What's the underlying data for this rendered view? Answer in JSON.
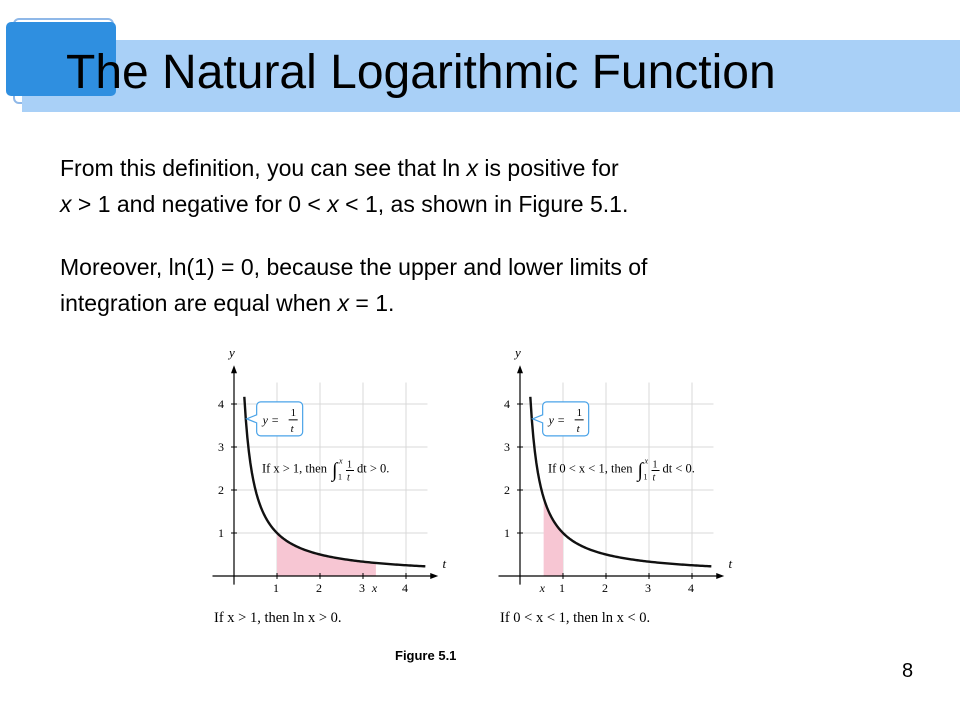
{
  "slide": {
    "title": "The Natural Logarithmic Function",
    "page_number": "8"
  },
  "paragraph1": {
    "line1_a": "From this definition, you can see that ln ",
    "line1_x": "x",
    "line1_b": " is positive for",
    "line2_x1": "x",
    "line2_a": " > 1 and negative for  0 < ",
    "line2_x2": "x",
    "line2_b": " < 1, as shown in Figure 5.1."
  },
  "paragraph2": {
    "line1": "Moreover, ln(1) = 0, because the upper and lower limits of",
    "line2_a": "integration are equal when ",
    "line2_x": "x",
    "line2_b": " = 1."
  },
  "figure": {
    "label": "Figure 5.1",
    "curve_label_y": "y =",
    "curve_label_num": "1",
    "curve_label_den": "t",
    "axis_y": "y",
    "axis_t": "t",
    "marker_x": "x",
    "left": {
      "condition_a": "If x > 1, then",
      "condition_b": "dt > 0.",
      "caption": "If x > 1, then ln x > 0."
    },
    "right": {
      "condition_a": "If 0 < x < 1, then",
      "condition_b": "dt < 0.",
      "caption": "If 0 < x < 1, then ln x < 0."
    },
    "integral": {
      "lower": "1",
      "upper": "x",
      "num": "1",
      "den": "t"
    },
    "shade_color": "#f7c6d3",
    "curve_color": "#111111"
  },
  "chart_data": [
    {
      "type": "area",
      "title": "If x > 1, then ln x > 0.",
      "xlabel": "t",
      "ylabel": "y",
      "function": "y = 1/t",
      "xlim": [
        0,
        4.5
      ],
      "ylim": [
        0,
        4.5
      ],
      "x_ticks": [
        1,
        2,
        3,
        4
      ],
      "y_ticks": [
        1,
        2,
        3,
        4
      ],
      "shaded_interval": [
        1,
        3.3
      ],
      "grid": true
    },
    {
      "type": "area",
      "title": "If 0 < x < 1, then ln x < 0.",
      "xlabel": "t",
      "ylabel": "y",
      "function": "y = 1/t",
      "xlim": [
        0,
        4.5
      ],
      "ylim": [
        0,
        4.5
      ],
      "x_ticks": [
        1,
        2,
        3,
        4
      ],
      "y_ticks": [
        1,
        2,
        3,
        4
      ],
      "shaded_interval": [
        0.55,
        1
      ],
      "grid": true
    }
  ]
}
